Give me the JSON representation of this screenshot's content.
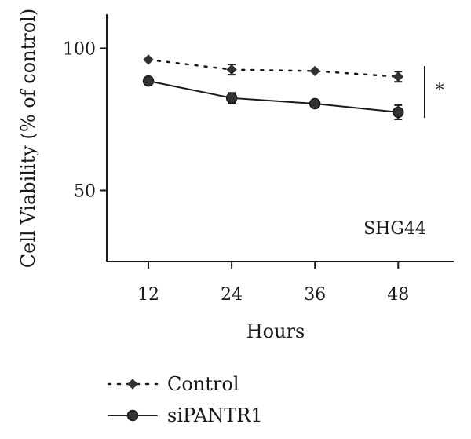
{
  "chart_data": {
    "type": "line",
    "xlabel": "Hours",
    "ylabel": "Cell Viability (% of control)",
    "x": [
      12,
      24,
      36,
      48
    ],
    "xlim": [
      6,
      56
    ],
    "ylim": [
      25,
      112
    ],
    "xticks": [
      12,
      24,
      36,
      48
    ],
    "yticks": [
      50,
      100
    ],
    "annotation": "SHG44",
    "significance": "*",
    "grid": false,
    "legend_position": "bottom-left",
    "series": [
      {
        "name": "Control",
        "values": [
          96,
          92.5,
          92,
          90
        ],
        "errors": [
          0,
          1.8,
          0,
          1.8
        ],
        "style": "dotted",
        "marker": "diamond",
        "color": "#333333"
      },
      {
        "name": "siPANTR1",
        "values": [
          88.5,
          82.5,
          80.5,
          77.5
        ],
        "errors": [
          0,
          1.8,
          0,
          2.5
        ],
        "style": "solid",
        "marker": "circle",
        "color": "#333333"
      }
    ]
  }
}
